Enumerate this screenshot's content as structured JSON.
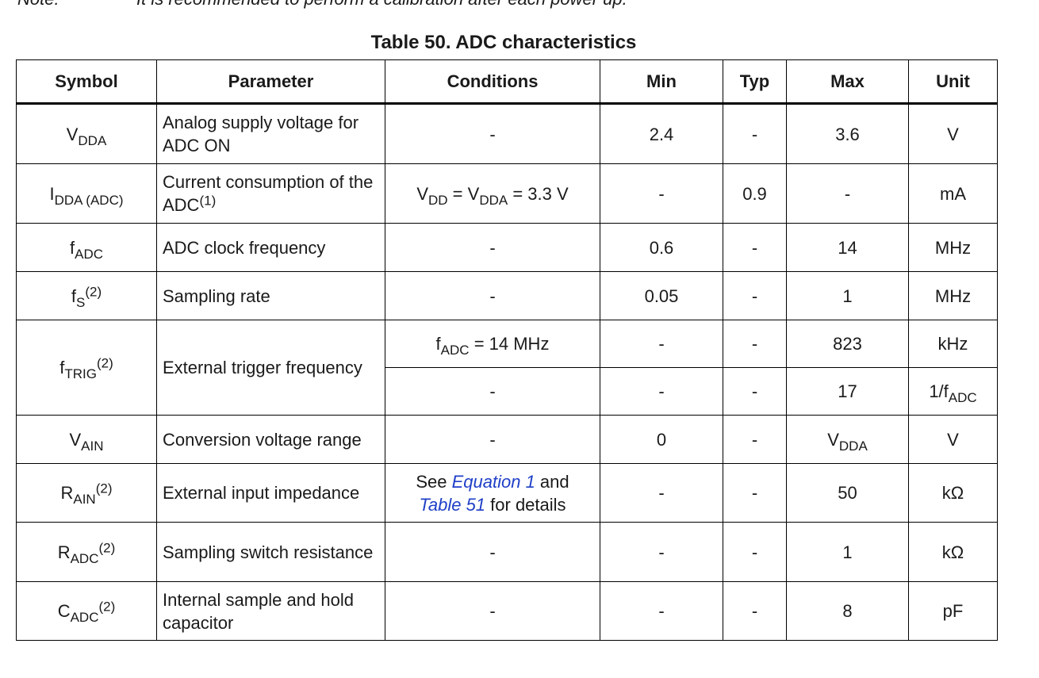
{
  "note": {
    "label": "Note:",
    "text": "It is recommended to perform a calibration after each power up."
  },
  "caption": "Table 50. ADC characteristics",
  "headers": {
    "symbol": "Symbol",
    "parameter": "Parameter",
    "conditions": "Conditions",
    "min": "Min",
    "typ": "Typ",
    "max": "Max",
    "unit": "Unit"
  },
  "rows": {
    "vdda": {
      "sym": "V",
      "sym_sub": "DDA",
      "param": "Analog supply voltage for ADC ON",
      "cond": "-",
      "min": "2.4",
      "typ": "-",
      "max": "3.6",
      "unit": "V"
    },
    "idda": {
      "sym": "I",
      "sym_sub": "DDA (ADC)",
      "param": "Current consumption of the ADC",
      "param_sup": "(1)",
      "cond_a": "V",
      "cond_a_sub": "DD",
      "cond_b": " = V",
      "cond_b_sub": "DDA",
      "cond_c": " = 3.3 V",
      "min": "-",
      "typ": "0.9",
      "max": "-",
      "unit": "mA"
    },
    "fadc": {
      "sym": "f",
      "sym_sub": "ADC",
      "param": "ADC clock frequency",
      "cond": "-",
      "min": "0.6",
      "typ": "-",
      "max": "14",
      "unit": "MHz"
    },
    "fs": {
      "sym": "f",
      "sym_sub": "S",
      "sym_sup": "(2)",
      "param": "Sampling rate",
      "cond": "-",
      "min": "0.05",
      "typ": "-",
      "max": "1",
      "unit": "MHz"
    },
    "ftrig": {
      "sym": "f",
      "sym_sub": "TRIG",
      "sym_sup": "(2)",
      "param": "External trigger frequency",
      "r1": {
        "cond": "f",
        "cond_sub": "ADC",
        "cond_rest": " = 14 MHz",
        "min": "-",
        "typ": "-",
        "max": "823",
        "unit": "kHz"
      },
      "r2": {
        "cond": "-",
        "min": "-",
        "typ": "-",
        "max": "17",
        "unit": "1/f",
        "unit_sub": "ADC"
      }
    },
    "vain": {
      "sym": "V",
      "sym_sub": "AIN",
      "param": "Conversion voltage range",
      "cond": "-",
      "min": "0",
      "typ": "-",
      "max": "V",
      "max_sub": "DDA",
      "unit": "V"
    },
    "rain": {
      "sym": "R",
      "sym_sub": "AIN",
      "sym_sup": "(2)",
      "param": "External input impedance",
      "cond_see": "See ",
      "cond_link1": "Equation 1",
      "cond_and": " and",
      "cond_link2": "Table 51",
      "cond_tail": " for details",
      "min": "-",
      "typ": "-",
      "max": "50",
      "unit": "kΩ"
    },
    "radc": {
      "sym": "R",
      "sym_sub": "ADC",
      "sym_sup": "(2)",
      "param": "Sampling switch resistance",
      "cond": "-",
      "min": "-",
      "typ": "-",
      "max": "1",
      "unit": "kΩ"
    },
    "cadc": {
      "sym": "C",
      "sym_sub": "ADC",
      "sym_sup": "(2)",
      "param": "Internal sample and hold capacitor",
      "cond": "-",
      "min": "-",
      "typ": "-",
      "max": "8",
      "unit": "pF"
    }
  }
}
